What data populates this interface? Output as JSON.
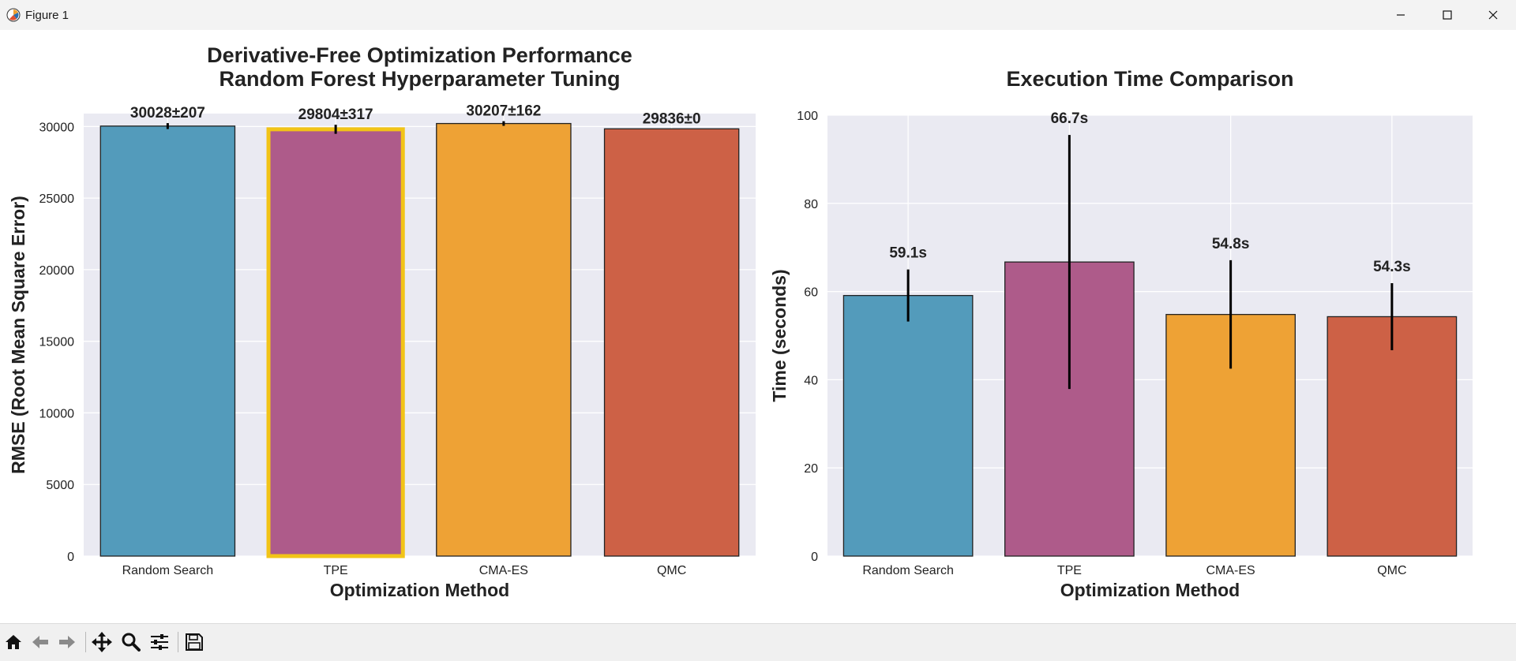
{
  "window": {
    "title": "Figure 1",
    "controls": [
      "minimize-icon",
      "maximize-icon",
      "close-icon"
    ]
  },
  "toolbar": {
    "icons": [
      "home-icon",
      "back-arrow-icon",
      "forward-arrow-icon",
      "pan-move-icon",
      "zoom-magnifier-icon",
      "configure-subplots-icon",
      "save-floppy-icon"
    ]
  },
  "colors": {
    "plot_background": "#eaeaf2",
    "grid": "#ffffff",
    "bar_edge": "#222222",
    "highlight_edge": "#f2c417",
    "error_bar": "#000000",
    "bars": [
      "#539bbb",
      "#ae5b8a",
      "#eea235",
      "#cd6146"
    ]
  },
  "chart_data": [
    {
      "type": "bar",
      "title": "Derivative-Free Optimization Performance\nRandom Forest Hyperparameter Tuning",
      "xlabel": "Optimization Method",
      "ylabel": "RMSE (Root Mean Square Error)",
      "categories": [
        "Random Search",
        "TPE",
        "CMA-ES",
        "QMC"
      ],
      "values": [
        30028,
        29804,
        30207,
        29836
      ],
      "errors": [
        207,
        317,
        162,
        0
      ],
      "data_labels": [
        "30028±207",
        "29804±317",
        "30207±162",
        "29836±0"
      ],
      "highlighted_category": "TPE",
      "ylim": [
        0,
        30900
      ],
      "yticks": [
        0,
        5000,
        10000,
        15000,
        20000,
        25000,
        30000
      ],
      "grid": true
    },
    {
      "type": "bar",
      "title": "Execution Time Comparison",
      "xlabel": "Optimization Method",
      "ylabel": "Time (seconds)",
      "categories": [
        "Random Search",
        "TPE",
        "CMA-ES",
        "QMC"
      ],
      "values": [
        59.1,
        66.7,
        54.8,
        54.3
      ],
      "errors": [
        5.9,
        28.8,
        12.3,
        7.6
      ],
      "data_labels": [
        "59.1s",
        "66.7s",
        "54.8s",
        "54.3s"
      ],
      "ylim": [
        0,
        100
      ],
      "yticks": [
        0,
        20,
        40,
        60,
        80,
        100
      ],
      "grid": true
    }
  ]
}
